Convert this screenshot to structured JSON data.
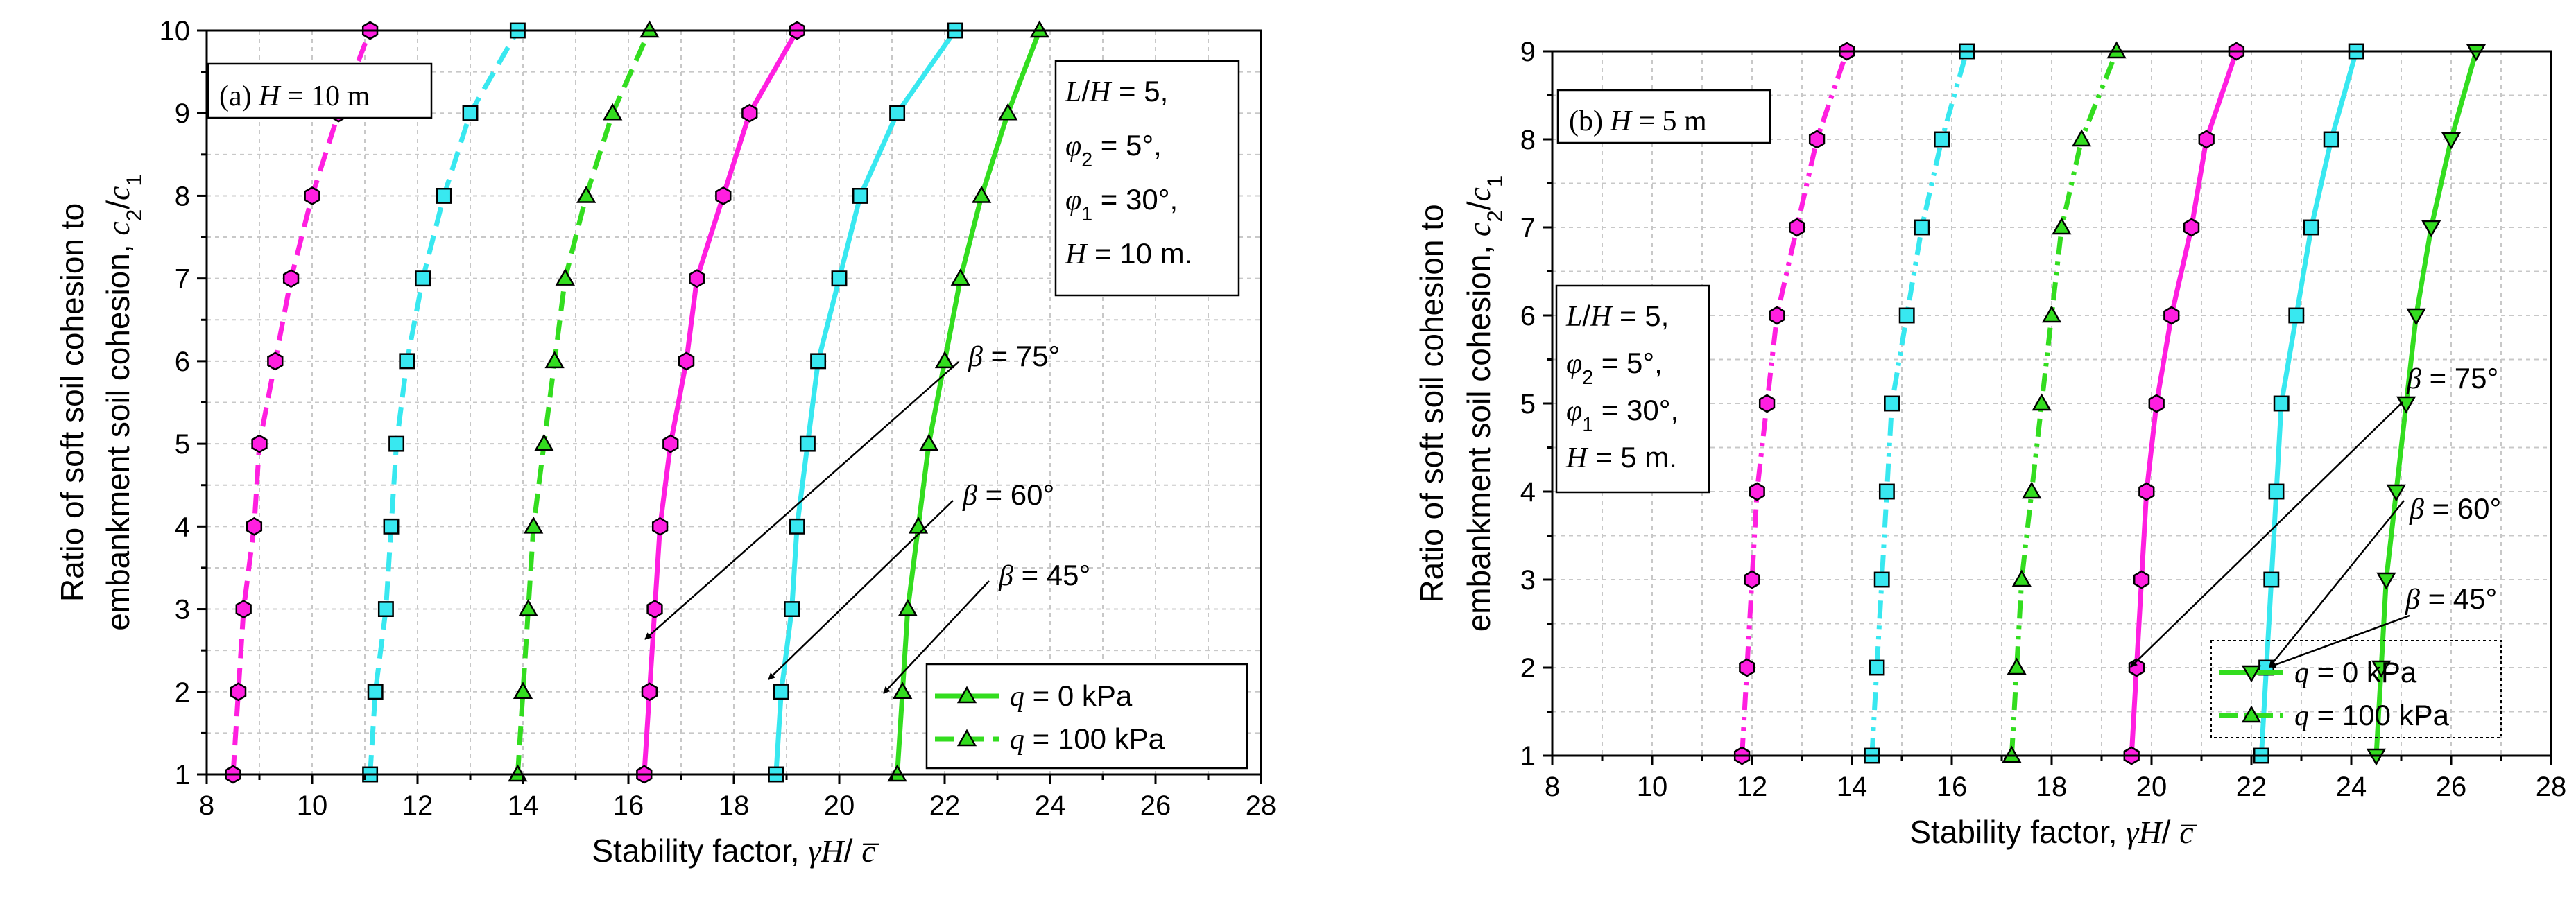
{
  "chart_data": [
    {
      "type": "line",
      "panel_label": "(a) H = 10 m",
      "xlabel": "Stability factor, γH/ c̅",
      "ylabel_line1": "Ratio of soft soil cohesion to",
      "ylabel_line2": "embankment soil cohesion, c2/c1",
      "xlim": [
        8,
        28
      ],
      "ylim": [
        1,
        10
      ],
      "xticks": [
        "8",
        "10",
        "12",
        "14",
        "16",
        "18",
        "20",
        "22",
        "24",
        "26",
        "28"
      ],
      "yticks": [
        "1",
        "2",
        "3",
        "4",
        "5",
        "6",
        "7",
        "8",
        "9",
        "10"
      ],
      "params": [
        "L/H = 5,",
        "φ2 = 5°,",
        "φ1 = 30°,",
        "H = 10 m."
      ],
      "annotations": [
        "β = 75°",
        "β = 60°",
        "β = 45°"
      ],
      "legend": [
        "q = 0 kPa",
        "q = 100 kPa"
      ],
      "series": [
        {
          "name": "β = 75°, q = 0 kPa",
          "load": "q = 0 kPa",
          "color": "#ff1fe0",
          "marker": "hexagon",
          "x": [
            16.3,
            16.4,
            16.5,
            16.6,
            16.8,
            17.1,
            17.3,
            17.8,
            18.3,
            19.2
          ],
          "y": [
            1,
            2,
            3,
            4,
            5,
            6,
            7,
            8,
            9,
            10
          ]
        },
        {
          "name": "β = 60°, q = 0 kPa",
          "load": "q = 0 kPa",
          "color": "#38e8f0",
          "marker": "square",
          "x": [
            18.8,
            18.9,
            19.1,
            19.2,
            19.4,
            19.6,
            20.0,
            20.4,
            21.1,
            22.2
          ],
          "y": [
            1,
            2,
            3,
            4,
            5,
            6,
            7,
            8,
            9,
            10
          ]
        },
        {
          "name": "β = 45°, q = 0 kPa",
          "load": "q = 0 kPa",
          "color": "#33dd1f",
          "marker": "triangle-up",
          "x": [
            21.1,
            21.2,
            21.3,
            21.5,
            21.7,
            22.0,
            22.3,
            22.7,
            23.2,
            23.8
          ],
          "y": [
            1,
            2,
            3,
            4,
            5,
            6,
            7,
            8,
            9,
            10
          ]
        },
        {
          "name": "β = 75°, q = 100 kPa",
          "load": "q = 100 kPa",
          "color": "#ff1fe0",
          "marker": "hexagon",
          "x": [
            8.5,
            8.6,
            8.7,
            8.9,
            9.0,
            9.3,
            9.6,
            10.0,
            10.5,
            11.1
          ],
          "y": [
            1,
            2,
            3,
            4,
            5,
            6,
            7,
            8,
            9,
            10
          ]
        },
        {
          "name": "β = 60°, q = 100 kPa",
          "load": "q = 100 kPa",
          "color": "#38e8f0",
          "marker": "square",
          "x": [
            11.1,
            11.2,
            11.4,
            11.5,
            11.6,
            11.8,
            12.1,
            12.5,
            13.0,
            13.9
          ],
          "y": [
            1,
            2,
            3,
            4,
            5,
            6,
            7,
            8,
            9,
            10
          ]
        },
        {
          "name": "β = 45°, q = 100 kPa",
          "load": "q = 100 kPa",
          "color": "#33dd1f",
          "marker": "triangle-up",
          "x": [
            13.9,
            14.0,
            14.1,
            14.2,
            14.4,
            14.6,
            14.8,
            15.2,
            15.7,
            16.4
          ],
          "y": [
            1,
            2,
            3,
            4,
            5,
            6,
            7,
            8,
            9,
            10
          ]
        }
      ]
    },
    {
      "type": "line",
      "panel_label": "(b) H = 5 m",
      "xlabel": "Stability factor, γH/ c̅",
      "ylabel_line1": "Ratio of soft soil cohesion to",
      "ylabel_line2": "embankment soil cohesion, c2/c1",
      "xlim": [
        8,
        28
      ],
      "ylim": [
        1,
        9
      ],
      "xticks": [
        "8",
        "10",
        "12",
        "14",
        "16",
        "18",
        "20",
        "22",
        "24",
        "26",
        "28"
      ],
      "yticks": [
        "1",
        "2",
        "3",
        "4",
        "5",
        "6",
        "7",
        "8",
        "9"
      ],
      "params": [
        "L/H = 5,",
        "φ2 = 5°,",
        "φ1 = 30°,",
        "H = 5 m."
      ],
      "annotations": [
        "β = 75°",
        "β = 60°",
        "β = 45°"
      ],
      "legend": [
        "q = 0 kPa",
        "q = 100 kPa"
      ],
      "series": [
        {
          "name": "β = 75°, q = 0 kPa",
          "load": "q = 0 kPa",
          "color": "#ff1fe0",
          "marker": "hexagon",
          "x": [
            19.6,
            19.7,
            19.8,
            19.9,
            20.1,
            20.4,
            20.8,
            21.1,
            21.7
          ],
          "y": [
            1,
            2,
            3,
            4,
            5,
            6,
            7,
            8,
            9
          ]
        },
        {
          "name": "β = 60°, q = 0 kPa",
          "load": "q = 0 kPa",
          "color": "#38e8f0",
          "marker": "square",
          "x": [
            22.2,
            22.3,
            22.4,
            22.5,
            22.6,
            22.9,
            23.2,
            23.6,
            24.1
          ],
          "y": [
            1,
            2,
            3,
            4,
            5,
            6,
            7,
            8,
            9
          ]
        },
        {
          "name": "β = 45°, q = 0 kPa",
          "load": "q = 0 kPa",
          "color": "#33dd1f",
          "marker": "triangle-down",
          "x": [
            24.5,
            24.6,
            24.7,
            24.9,
            25.1,
            25.3,
            25.6,
            26.0,
            26.5
          ],
          "y": [
            1,
            2,
            3,
            4,
            5,
            6,
            7,
            8,
            9
          ]
        },
        {
          "name": "β = 75°, q = 100 kPa",
          "load": "q = 100 kPa",
          "color": "#ff1fe0",
          "marker": "hexagon",
          "x": [
            11.8,
            11.9,
            12.0,
            12.1,
            12.3,
            12.5,
            12.9,
            13.3,
            13.9
          ],
          "y": [
            1,
            2,
            3,
            4,
            5,
            6,
            7,
            8,
            9
          ]
        },
        {
          "name": "β = 60°, q = 100 kPa",
          "load": "q = 100 kPa",
          "color": "#38e8f0",
          "marker": "square",
          "x": [
            14.4,
            14.5,
            14.6,
            14.7,
            14.8,
            15.1,
            15.4,
            15.8,
            16.3
          ],
          "y": [
            1,
            2,
            3,
            4,
            5,
            6,
            7,
            8,
            9
          ]
        },
        {
          "name": "β = 45°, q = 100 kPa",
          "load": "q = 100 kPa",
          "color": "#33dd1f",
          "marker": "triangle-up",
          "x": [
            17.2,
            17.3,
            17.4,
            17.6,
            17.8,
            18.0,
            18.2,
            18.6,
            19.3
          ],
          "y": [
            1,
            2,
            3,
            4,
            5,
            6,
            7,
            8,
            9
          ]
        }
      ]
    }
  ]
}
